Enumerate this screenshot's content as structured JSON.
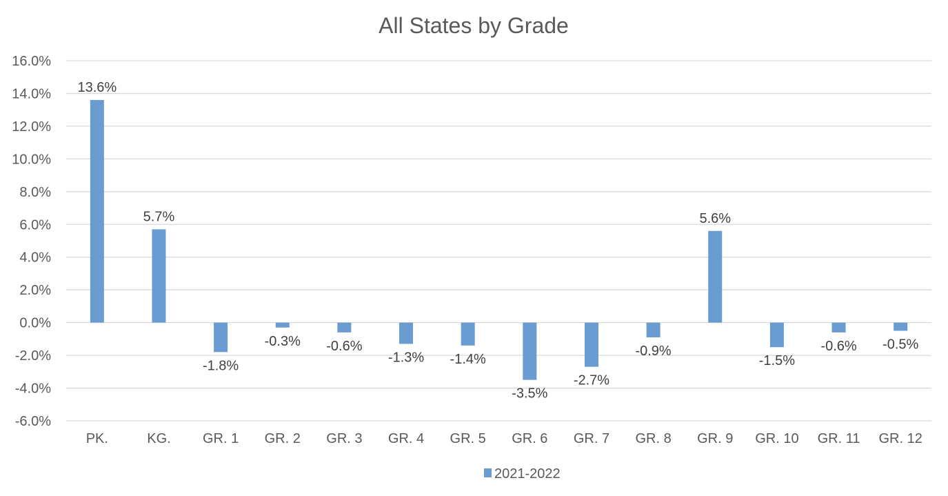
{
  "chart_data": {
    "type": "bar",
    "title": "All States by Grade",
    "xlabel": "",
    "ylabel": "",
    "categories": [
      "PK.",
      "KG.",
      "GR. 1",
      "GR. 2",
      "GR. 3",
      "GR. 4",
      "GR. 5",
      "GR. 6",
      "GR. 7",
      "GR. 8",
      "GR. 9",
      "GR. 10",
      "GR. 11",
      "GR. 12"
    ],
    "series": [
      {
        "name": "2021-2022",
        "color": "#6a9bd1",
        "values": [
          13.6,
          5.7,
          -1.8,
          -0.3,
          -0.6,
          -1.3,
          -1.4,
          -3.5,
          -2.7,
          -0.9,
          5.6,
          -1.5,
          -0.6,
          -0.5
        ],
        "labels": [
          "13.6%",
          "5.7%",
          "-1.8%",
          "-0.3%",
          "-0.6%",
          "-1.3%",
          "-1.4%",
          "-3.5%",
          "-2.7%",
          "-0.9%",
          "5.6%",
          "-1.5%",
          "-0.6%",
          "-0.5%"
        ]
      }
    ],
    "ylim": [
      -6,
      16
    ],
    "yticks": [
      16,
      14,
      12,
      10,
      8,
      6,
      4,
      2,
      0,
      -2,
      -4,
      -6
    ],
    "ytick_labels": [
      "16.0%",
      "14.0%",
      "12.0%",
      "10.0%",
      "8.0%",
      "6.0%",
      "4.0%",
      "2.0%",
      "0.0%",
      "-2.0%",
      "-4.0%",
      "-6.0%"
    ],
    "grid": true,
    "legend_position": "bottom"
  }
}
